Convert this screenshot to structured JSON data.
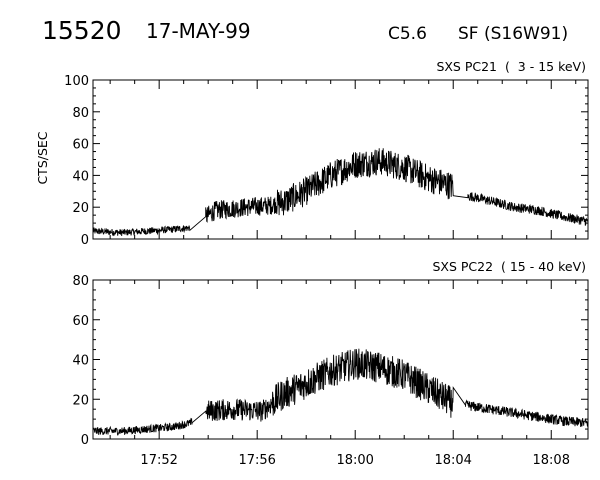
{
  "header": {
    "event_id": "15520",
    "date": "17-MAY-99",
    "goes_class": "C5.6",
    "flare_info": "SF (S16W91)"
  },
  "chart_data": [
    {
      "type": "line",
      "channel_label": "SXS PC21  (  3 - 15 keV)",
      "ylabel": "CTS/SEC",
      "ylim": [
        0,
        100
      ],
      "yticks": [
        "0",
        "20",
        "40",
        "60",
        "80",
        "100"
      ],
      "xlim_minutes": [
        49.3,
        69.5
      ],
      "xticks": [
        {
          "label": "17:52",
          "minute": 52
        },
        {
          "label": "17:56",
          "minute": 56
        },
        {
          "label": "18:00",
          "minute": 60
        },
        {
          "label": "18:04",
          "minute": 64
        },
        {
          "label": "18:08",
          "minute": 68
        }
      ],
      "envelope": [
        [
          49.3,
          5
        ],
        [
          50.5,
          4
        ],
        [
          51.5,
          5
        ],
        [
          52.5,
          6
        ],
        [
          53.2,
          7
        ],
        [
          53.8,
          13
        ],
        [
          54.3,
          18
        ],
        [
          55.5,
          20
        ],
        [
          56.5,
          21
        ],
        [
          57.2,
          24
        ],
        [
          58,
          30
        ],
        [
          59,
          40
        ],
        [
          60,
          47
        ],
        [
          61,
          49
        ],
        [
          62,
          45
        ],
        [
          63,
          38
        ],
        [
          64,
          33
        ],
        [
          64.1,
          21
        ],
        [
          64.7,
          27
        ],
        [
          65.5,
          24
        ],
        [
          66.5,
          20
        ],
        [
          67.5,
          18
        ],
        [
          68.5,
          14
        ],
        [
          69.5,
          11
        ]
      ],
      "segments": [
        {
          "start": 49.3,
          "end": 53.25,
          "noise": 2.2
        },
        {
          "gap_to": 53.9
        },
        {
          "start": 53.9,
          "end": 56.8,
          "noise": 6
        },
        {
          "start": 56.8,
          "end": 64.0,
          "noise": 9
        },
        {
          "gap_to": 64.6
        },
        {
          "start": 64.6,
          "end": 69.5,
          "noise": 3
        }
      ]
    },
    {
      "type": "line",
      "channel_label": "SXS PC22  ( 15 - 40 keV)",
      "ylabel": "",
      "ylim": [
        0,
        80
      ],
      "yticks": [
        "0",
        "20",
        "40",
        "60",
        "80"
      ],
      "xlim_minutes": [
        49.3,
        69.5
      ],
      "xticks": [
        {
          "label": "17:52",
          "minute": 52
        },
        {
          "label": "17:56",
          "minute": 56
        },
        {
          "label": "18:00",
          "minute": 60
        },
        {
          "label": "18:04",
          "minute": 64
        },
        {
          "label": "18:08",
          "minute": 68
        }
      ],
      "envelope": [
        [
          49.3,
          4
        ],
        [
          50.5,
          4
        ],
        [
          51.5,
          5
        ],
        [
          52.5,
          6
        ],
        [
          53.3,
          8
        ],
        [
          53.5,
          13
        ],
        [
          53.9,
          14
        ],
        [
          55,
          15
        ],
        [
          56.2,
          14
        ],
        [
          57,
          22
        ],
        [
          58,
          28
        ],
        [
          59,
          34
        ],
        [
          60,
          38
        ],
        [
          61,
          36
        ],
        [
          62,
          32
        ],
        [
          63,
          25
        ],
        [
          64,
          18
        ],
        [
          64.1,
          14
        ],
        [
          64.5,
          17
        ],
        [
          65.5,
          15
        ],
        [
          66.5,
          13
        ],
        [
          67.5,
          11
        ],
        [
          68.5,
          9
        ],
        [
          69.5,
          8
        ]
      ],
      "segments": [
        {
          "start": 49.3,
          "end": 53.35,
          "noise": 2
        },
        {
          "gap_to": 53.9
        },
        {
          "start": 53.9,
          "end": 56.6,
          "noise": 5.5
        },
        {
          "start": 56.6,
          "end": 64.0,
          "noise": 8
        },
        {
          "gap_to": 64.5
        },
        {
          "start": 64.5,
          "end": 69.5,
          "noise": 2.5
        }
      ]
    }
  ]
}
